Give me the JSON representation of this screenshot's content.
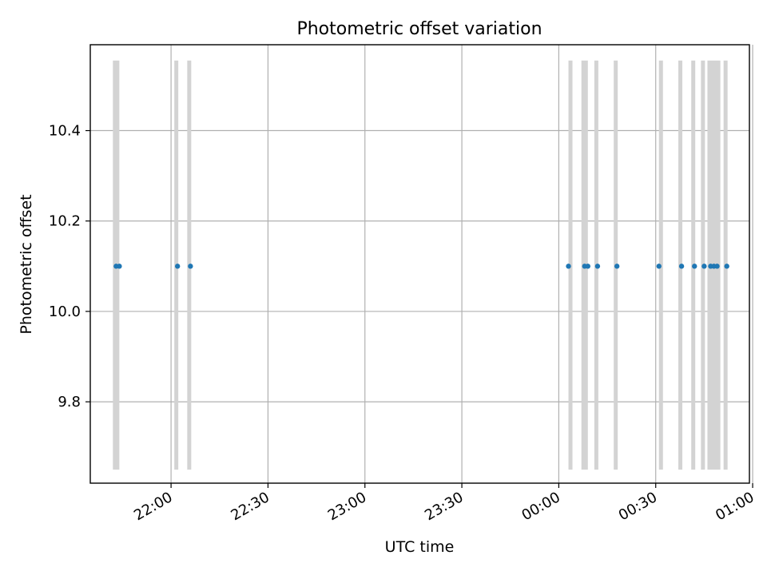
{
  "chart_data": {
    "type": "scatter",
    "title": "Photometric offset variation",
    "xlabel": "UTC time",
    "ylabel": "Photometric offset",
    "x_axis_type": "time",
    "x_ticks": [
      "22:00",
      "22:30",
      "23:00",
      "23:30",
      "00:00",
      "00:30",
      "01:00"
    ],
    "y_ticks": [
      "9.8",
      "10.0",
      "10.2",
      "10.4"
    ],
    "xlim": [
      "21:35",
      "00:59"
    ],
    "ylim": [
      9.62,
      10.59
    ],
    "grid": true,
    "legend": "none",
    "colors": {
      "points": "#1f77b4",
      "bands": "#d3d3d3",
      "grid": "#b0b0b0"
    },
    "band_y_range": [
      9.65,
      10.555
    ],
    "points": [
      {
        "x": "21:43",
        "y": 10.1
      },
      {
        "x": "21:44",
        "y": 10.1
      },
      {
        "x": "22:02",
        "y": 10.1
      },
      {
        "x": "22:06",
        "y": 10.1
      },
      {
        "x": "00:03",
        "y": 10.1
      },
      {
        "x": "00:08",
        "y": 10.1
      },
      {
        "x": "00:09",
        "y": 10.1
      },
      {
        "x": "00:12",
        "y": 10.1
      },
      {
        "x": "00:18",
        "y": 10.1
      },
      {
        "x": "00:31",
        "y": 10.1
      },
      {
        "x": "00:38",
        "y": 10.1
      },
      {
        "x": "00:42",
        "y": 10.1
      },
      {
        "x": "00:45",
        "y": 10.1
      },
      {
        "x": "00:47",
        "y": 10.1
      },
      {
        "x": "00:48",
        "y": 10.1
      },
      {
        "x": "00:49",
        "y": 10.1
      },
      {
        "x": "00:52",
        "y": 10.1
      }
    ],
    "bands": [
      {
        "start": "21:42",
        "end": "21:44"
      },
      {
        "start": "22:01",
        "end": "22:02"
      },
      {
        "start": "22:05",
        "end": "22:06"
      },
      {
        "start": "00:03",
        "end": "00:04"
      },
      {
        "start": "00:07",
        "end": "00:09"
      },
      {
        "start": "00:11",
        "end": "00:12"
      },
      {
        "start": "00:17",
        "end": "00:18"
      },
      {
        "start": "00:31",
        "end": "00:32"
      },
      {
        "start": "00:37",
        "end": "00:38"
      },
      {
        "start": "00:41",
        "end": "00:42"
      },
      {
        "start": "00:44",
        "end": "00:45"
      },
      {
        "start": "00:46",
        "end": "00:50"
      },
      {
        "start": "00:51",
        "end": "00:52"
      }
    ]
  }
}
